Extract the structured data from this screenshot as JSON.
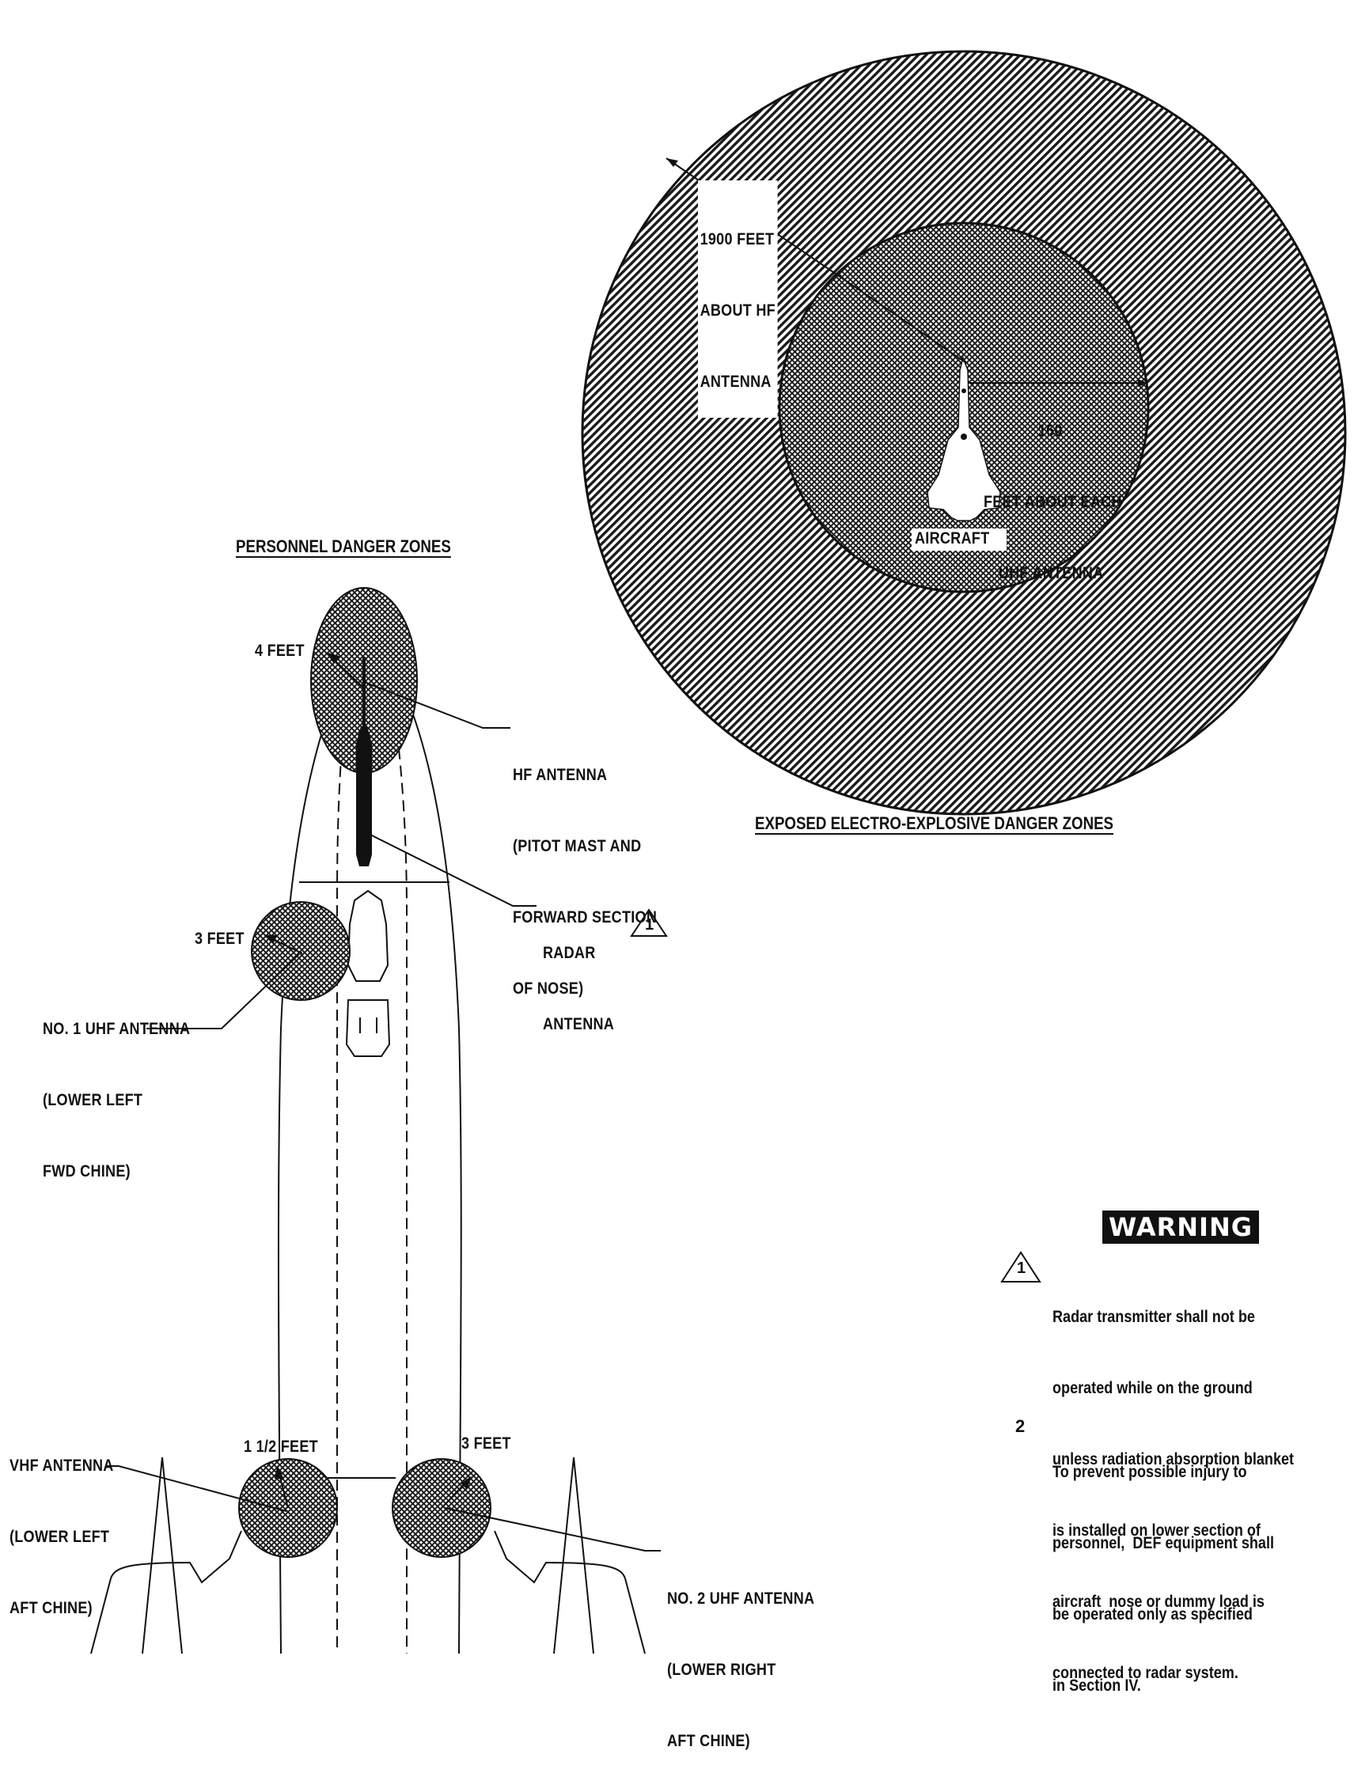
{
  "titles": {
    "personnel": "PERSONNEL DANGER ZONES",
    "explosive": "EXPOSED ELECTRO-EXPLOSIVE DANGER ZONES"
  },
  "explosive_zones": {
    "outer_label": [
      "1900 FEET",
      "ABOUT HF",
      "ANTENNA"
    ],
    "inner_label": [
      "160",
      "FEET ABOUT EACH",
      "UHF ANTENNA"
    ],
    "aircraft_label": "AIRCRAFT"
  },
  "personnel_zones": {
    "hf_distance": "4 FEET",
    "hf_label": [
      "HF ANTENNA",
      "(PITOT MAST AND",
      "FORWARD SECTION",
      "OF NOSE)"
    ],
    "radar_label": [
      "RADAR",
      "ANTENNA"
    ],
    "radar_note_ref": "1",
    "uhf1_distance": "3 FEET",
    "uhf1_label": [
      "NO. 1 UHF ANTENNA",
      "(LOWER LEFT",
      "FWD CHINE)"
    ],
    "vhf_label": [
      "VHF ANTENNA",
      "(LOWER LEFT",
      "AFT CHINE)"
    ],
    "vhf_distance": "1 1/2 FEET",
    "uhf2_distance": "3 FEET",
    "uhf2_label": [
      "NO. 2 UHF ANTENNA",
      "(LOWER RIGHT",
      "AFT CHINE)"
    ]
  },
  "warning": {
    "badge": "WARNING",
    "note1_ref": "1",
    "note1": [
      "Radar transmitter shall not be",
      "operated while on the ground",
      "unless radiation absorption blanket",
      "is installed on lower section of",
      "aircraft  nose or dummy load is",
      "connected to radar system."
    ],
    "note2_num": "2",
    "note2": [
      "To prevent possible injury to",
      "personnel,  DEF equipment shall",
      "be operated only as specified",
      "in Section IV."
    ]
  }
}
